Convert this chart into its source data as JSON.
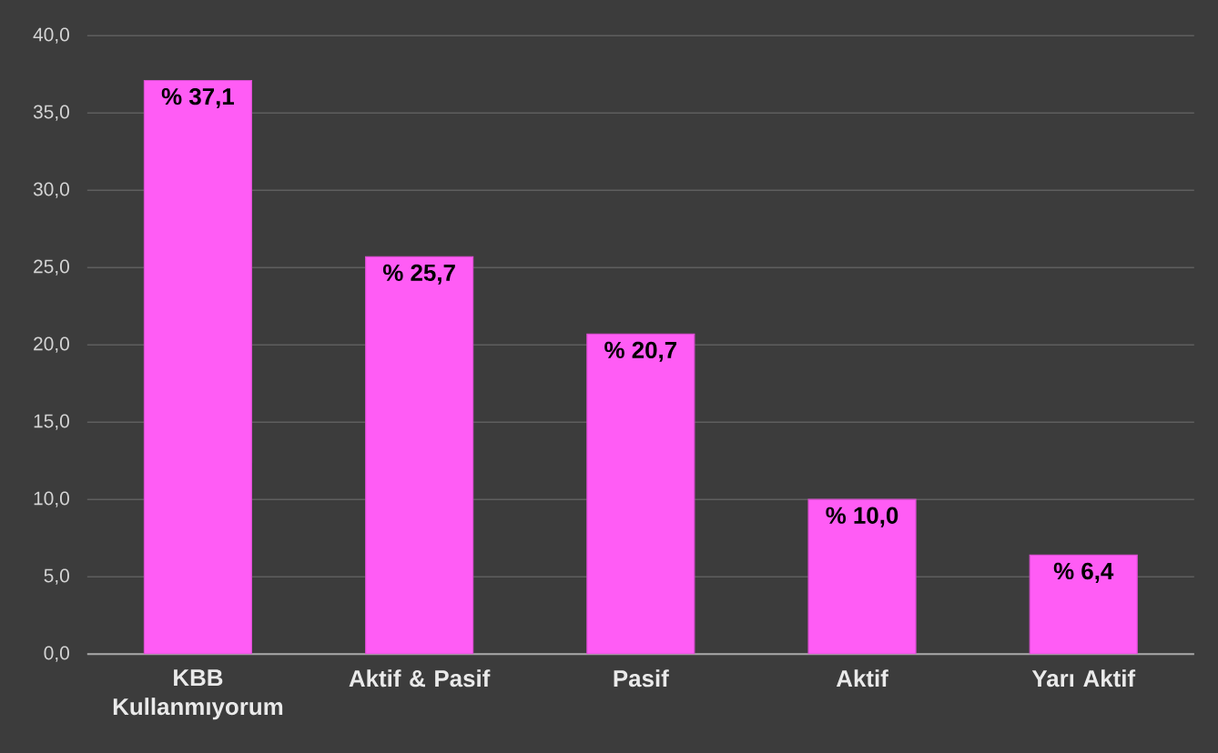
{
  "chart_data": {
    "type": "bar",
    "categories": [
      "KBB Kullanmıyorum",
      "Aktif & Pasif",
      "Pasif",
      "Aktif",
      "Yarı Aktif"
    ],
    "values": [
      37.1,
      25.7,
      20.7,
      10.0,
      6.4
    ],
    "value_labels": [
      "% 37,1",
      "% 25,7",
      "% 20,7",
      "% 10,0",
      "% 6,4"
    ],
    "color": "#ff5cf5",
    "ylim": [
      0,
      40
    ],
    "yticks": [
      {
        "value": 0,
        "label": "0,0"
      },
      {
        "value": 5,
        "label": "5,0"
      },
      {
        "value": 10,
        "label": "10,0"
      },
      {
        "value": 15,
        "label": "15,0"
      },
      {
        "value": 20,
        "label": "20,0"
      },
      {
        "value": 25,
        "label": "25,0"
      },
      {
        "value": 30,
        "label": "30,0"
      },
      {
        "value": 35,
        "label": "35,0"
      },
      {
        "value": 40,
        "label": "40,0"
      }
    ],
    "grid": "y"
  }
}
